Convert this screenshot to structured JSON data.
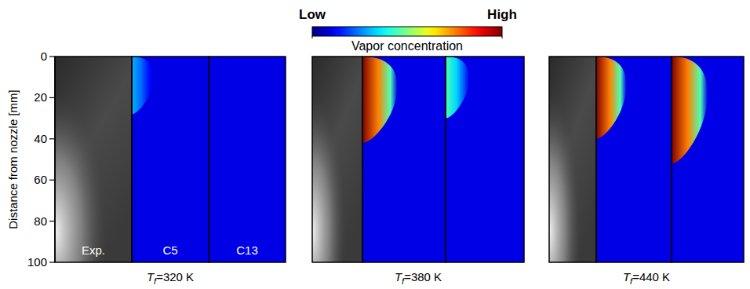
{
  "chart_data": {
    "type": "contour_panels",
    "y_label": "Distance from nozzle [mm]",
    "ylim": [
      0,
      100
    ],
    "yticks": [
      0,
      20,
      40,
      60,
      80,
      100
    ],
    "column_labels": [
      "Exp.",
      "C5",
      "C13"
    ],
    "colorbar": {
      "label": "Vapor concentration",
      "range": [
        0,
        1
      ],
      "ticks": [
        {
          "value": 0,
          "label": "Low"
        },
        {
          "value": 1,
          "label": "High"
        }
      ]
    },
    "panels": [
      {
        "label": [
          "T",
          "f",
          "=320 K"
        ],
        "simulations": [
          {
            "penetration": 28,
            "peak": 0.3
          },
          {
            "penetration": 0,
            "peak": 0
          }
        ]
      },
      {
        "label": [
          "T",
          "f",
          "=380 K"
        ],
        "simulations": [
          {
            "penetration": 42,
            "peak": 1
          },
          {
            "penetration": 30,
            "peak": 0.45
          }
        ]
      },
      {
        "label": [
          "T",
          "f",
          "=440 K"
        ],
        "simulations": [
          {
            "penetration": 40,
            "peak": 1
          },
          {
            "penetration": 52,
            "peak": 1
          }
        ]
      }
    ]
  }
}
